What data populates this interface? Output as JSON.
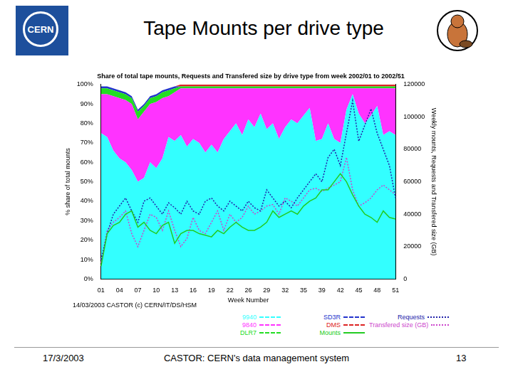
{
  "slide": {
    "title": "Tape Mounts per drive type",
    "logo": "CERN",
    "footer": {
      "date": "17/3/2003",
      "text": "CASTOR: CERN's data management system",
      "page": "13"
    }
  },
  "chart_data": {
    "type": "line",
    "title": "Share of total tape mounts, Requests and Transfered size by drive type from week 2002/01 to 2002/51",
    "annotations": [
      "14/03/2003 CASTOR (c) CERN/IT/DS/HSM"
    ],
    "x_label": "Week Number",
    "y_label": "% share of total mounts",
    "y2_label": "Weekly mounts, Requests and Transfered size (GB)",
    "categories": [
      "01",
      null,
      null,
      "04",
      null,
      null,
      "07",
      null,
      null,
      "10",
      null,
      null,
      "13",
      null,
      null,
      "16",
      null,
      null,
      "19",
      null,
      null,
      "22",
      null,
      null,
      "26",
      null,
      null,
      "29",
      null,
      null,
      "32",
      null,
      null,
      "35",
      null,
      null,
      "39",
      null,
      null,
      "42",
      null,
      null,
      "45",
      null,
      null,
      "48",
      null,
      null,
      "51"
    ],
    "stacked": true,
    "grid": false,
    "legend": "bottom",
    "ylim": [
      0,
      100
    ],
    "yticks": [
      {
        "value": 0,
        "label": "0%"
      },
      {
        "value": 10,
        "label": "10%"
      },
      {
        "value": 20,
        "label": "20%"
      },
      {
        "value": 30,
        "label": "30%"
      },
      {
        "value": 40,
        "label": "40%"
      },
      {
        "value": 50,
        "label": "50%"
      },
      {
        "value": 60,
        "label": "60%"
      },
      {
        "value": 70,
        "label": "70%"
      },
      {
        "value": 80,
        "label": "80%"
      },
      {
        "value": 90,
        "label": "90%"
      },
      {
        "value": 100,
        "label": "100%"
      }
    ],
    "y2lim": [
      0,
      120000
    ],
    "y2ticks": [
      0,
      20000,
      40000,
      60000,
      80000,
      100000,
      120000
    ],
    "series": [
      {
        "name": "9940",
        "type": "area",
        "color": "#33ffff",
        "values": [
          75,
          73,
          66,
          62,
          60,
          56,
          50,
          52,
          60,
          57,
          62,
          73,
          71,
          74,
          68,
          72,
          70,
          65,
          69,
          65,
          72,
          76,
          80,
          74,
          82,
          78,
          85,
          77,
          80,
          72,
          78,
          82,
          80,
          84,
          88,
          71,
          72,
          80,
          72,
          70,
          87,
          95,
          85,
          80,
          84,
          89,
          74,
          76,
          74
        ]
      },
      {
        "name": "9840",
        "type": "area",
        "color": "#ff33ff",
        "values": [
          20,
          22,
          28,
          31,
          32,
          34,
          32,
          34,
          30,
          34,
          31,
          21,
          25,
          24,
          30,
          26,
          28,
          33,
          29,
          33,
          26,
          22,
          18,
          24,
          16,
          20,
          13,
          21,
          18,
          26,
          20,
          16,
          18,
          14,
          10,
          27,
          26,
          18,
          26,
          28,
          11,
          3,
          13,
          18,
          14,
          9,
          24,
          22,
          24
        ]
      },
      {
        "name": "DLR7",
        "type": "area",
        "color": "#22dd22",
        "values": [
          3,
          3,
          3,
          3,
          3,
          3,
          4,
          3,
          3,
          3,
          3,
          3,
          2,
          1,
          1,
          1,
          1,
          1,
          1,
          1,
          1,
          1,
          1,
          1,
          1,
          1,
          1,
          1,
          1,
          1,
          1,
          1,
          1,
          1,
          1,
          1,
          1,
          1,
          1,
          1,
          1,
          1,
          1,
          1,
          1,
          1,
          1,
          1,
          1
        ]
      },
      {
        "name": "SD3R",
        "type": "area",
        "color": "#2233cc",
        "values": [
          1,
          1,
          1,
          1,
          1,
          1,
          1,
          1,
          1,
          1,
          1,
          1,
          1,
          0,
          0,
          0,
          0,
          0,
          0,
          0,
          0,
          0,
          0,
          0,
          0,
          0,
          0,
          0,
          0,
          0,
          0,
          0,
          0,
          0,
          0,
          0,
          0,
          0,
          0,
          0,
          0,
          0,
          0,
          0,
          0,
          0,
          0,
          0,
          0
        ]
      },
      {
        "name": "DMS",
        "type": "area",
        "color": "#dd2222",
        "values": [
          0,
          0,
          0,
          0,
          0,
          0,
          0,
          0,
          0,
          0,
          0,
          0,
          0,
          1,
          1,
          1,
          1,
          1,
          1,
          1,
          1,
          1,
          1,
          1,
          1,
          1,
          1,
          1,
          1,
          1,
          1,
          1,
          1,
          1,
          1,
          1,
          1,
          1,
          1,
          1,
          1,
          1,
          1,
          1,
          1,
          1,
          1,
          1,
          1
        ]
      },
      {
        "name": "Mounts",
        "type": "line",
        "axis": "y2",
        "color": "#22cc22",
        "line_style": "solid",
        "values": [
          8000,
          28000,
          33000,
          35000,
          40000,
          42000,
          32000,
          35000,
          30000,
          28000,
          33000,
          35000,
          22000,
          28000,
          30000,
          30000,
          28000,
          27000,
          26000,
          30000,
          28000,
          32000,
          35000,
          32000,
          30000,
          30000,
          32000,
          35000,
          42000,
          38000,
          40000,
          42000,
          40000,
          45000,
          48000,
          50000,
          55000,
          55000,
          60000,
          65000,
          60000,
          52000,
          45000,
          40000,
          38000,
          35000,
          42000,
          38000,
          37000
        ]
      },
      {
        "name": "Requests",
        "type": "line",
        "axis": "y2",
        "color": "#2222aa",
        "line_style": "dotted",
        "values": [
          12000,
          28000,
          40000,
          45000,
          50000,
          42000,
          35000,
          48000,
          50000,
          45000,
          40000,
          47000,
          44000,
          40000,
          48000,
          42000,
          40000,
          48000,
          50000,
          45000,
          42000,
          48000,
          45000,
          42000,
          48000,
          44000,
          42000,
          55000,
          50000,
          45000,
          48000,
          44000,
          50000,
          55000,
          60000,
          65000,
          60000,
          75000,
          80000,
          70000,
          90000,
          110000,
          85000,
          95000,
          105000,
          90000,
          80000,
          70000,
          50000
        ]
      },
      {
        "name": "Transfered size (GB)",
        "type": "line",
        "axis": "y2",
        "color": "#cc44cc",
        "line_style": "dotted",
        "values": [
          10000,
          30000,
          35000,
          38000,
          42000,
          28000,
          20000,
          30000,
          40000,
          38000,
          30000,
          42000,
          30000,
          20000,
          25000,
          38000,
          30000,
          28000,
          35000,
          42000,
          30000,
          40000,
          35000,
          38000,
          45000,
          40000,
          42000,
          45000,
          46000,
          40000,
          50000,
          48000,
          45000,
          50000,
          55000,
          56000,
          54000,
          56000,
          58000,
          60000,
          75000,
          55000,
          45000,
          47000,
          50000,
          55000,
          58000,
          55000,
          52000
        ]
      }
    ]
  }
}
